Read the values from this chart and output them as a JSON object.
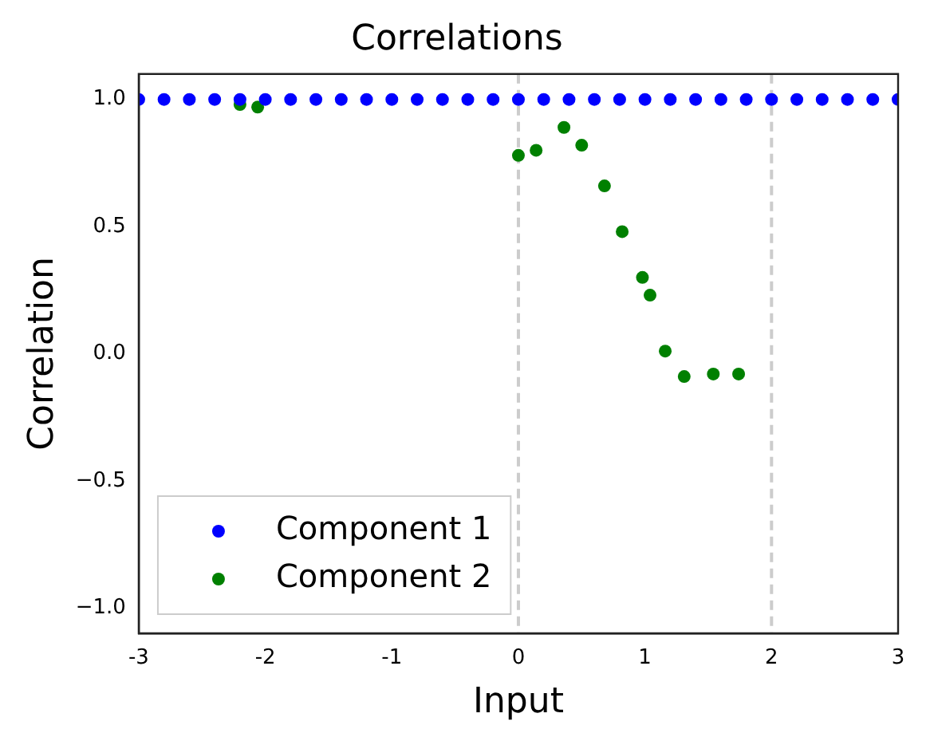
{
  "chart_data": {
    "type": "scatter",
    "title": "Correlations",
    "xlabel": "Input",
    "ylabel": "Correlation",
    "xlim": [
      -3,
      3
    ],
    "xticks": [
      -3,
      -2,
      -1,
      0,
      1,
      2,
      3
    ],
    "ylim": [
      -1.1,
      1.1
    ],
    "yticks": [
      {
        "value": -1,
        "label": "−1.0"
      },
      {
        "value": -0.5,
        "label": "−0.5"
      },
      {
        "value": 0,
        "label": "0.0"
      },
      {
        "value": 0.5,
        "label": "0.5"
      },
      {
        "value": 1,
        "label": "1.0"
      }
    ],
    "grid": false,
    "legend": "bottom left",
    "marker": "circle",
    "ref_lines": [
      {
        "axis": "x",
        "value": 0,
        "color": "#cccccc",
        "line_style": "dashed"
      },
      {
        "axis": "x",
        "value": 2,
        "color": "#cccccc",
        "line_style": "dashed"
      }
    ],
    "series": [
      {
        "name": "Component 1",
        "color": "#0000ff",
        "x": [
          -3,
          -2.8,
          -2.6,
          -2.4,
          -2.2,
          -2,
          -1.8,
          -1.6,
          -1.4,
          -1.2,
          -1,
          -0.8,
          -0.6,
          -0.4,
          -0.2,
          0,
          0.2,
          0.4,
          0.6,
          0.8,
          1,
          1.2,
          1.4,
          1.6,
          1.8,
          2,
          2.2,
          2.4,
          2.6,
          2.8,
          3
        ],
        "values": [
          1,
          1,
          1,
          1,
          1,
          1,
          1,
          1,
          1,
          1,
          1,
          1,
          1,
          1,
          1,
          1,
          1,
          1,
          1,
          1,
          1,
          1,
          1,
          1,
          1,
          1,
          1,
          1,
          1,
          1,
          1
        ]
      },
      {
        "name": "Component 2",
        "color": "#008000",
        "x": [
          -2.2,
          -2.06,
          0,
          0.14,
          0.36,
          0.5,
          0.68,
          0.82,
          0.98,
          1.04,
          1.16,
          1.31,
          1.54,
          1.74
        ],
        "values": [
          0.98,
          0.97,
          0.78,
          0.8,
          0.89,
          0.82,
          0.66,
          0.48,
          0.3,
          0.23,
          0.01,
          -0.09,
          -0.08,
          -0.08
        ]
      }
    ]
  }
}
